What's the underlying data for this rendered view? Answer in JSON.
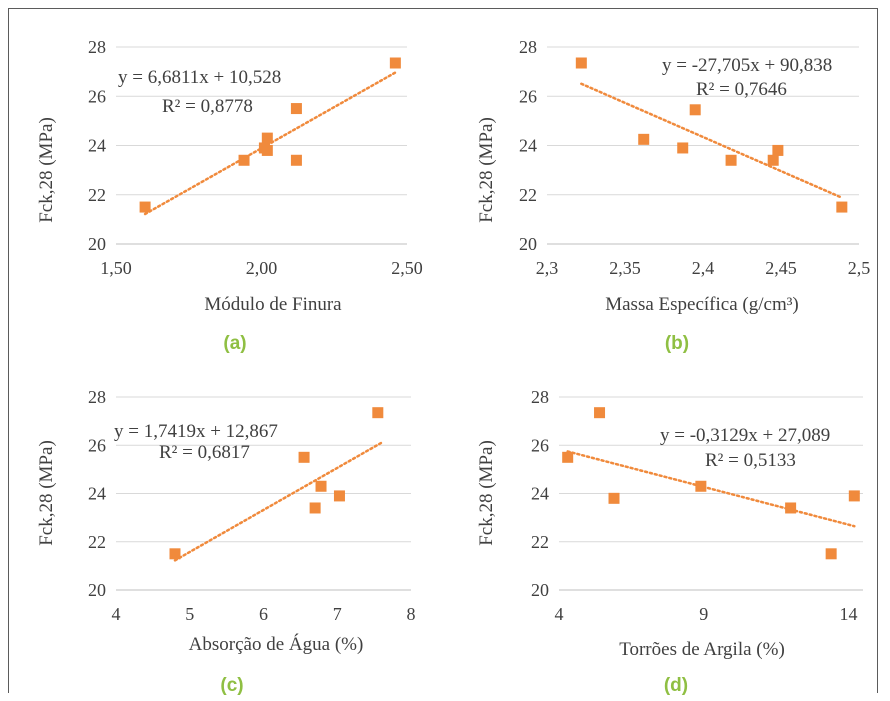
{
  "panels": [
    {
      "label": "(a)"
    },
    {
      "label": "(b)"
    },
    {
      "label": "(c)"
    },
    {
      "label": "(d)"
    }
  ],
  "colors": {
    "marker": "#f08a3c",
    "trendline": "#f08a3c",
    "grid": "#d9d9d9",
    "text": "#404040",
    "panel_label": "#8fbf43"
  },
  "chart_data": [
    {
      "type": "scatter",
      "title": "",
      "xlabel": "Módulo de Finura",
      "ylabel": "Fck,28 (MPa)",
      "xlim": [
        1.5,
        2.5
      ],
      "ylim": [
        20,
        28
      ],
      "xticks": [
        1.5,
        2.0,
        2.5
      ],
      "xtick_labels": [
        "1,50",
        "2,00",
        "2,50"
      ],
      "yticks": [
        20,
        22,
        24,
        26,
        28
      ],
      "ytick_labels": [
        "20",
        "22",
        "24",
        "26",
        "28"
      ],
      "grid": "horizontal",
      "x": [
        1.6,
        1.94,
        2.01,
        2.02,
        2.02,
        2.12,
        2.12,
        2.46
      ],
      "y": [
        21.5,
        23.4,
        23.9,
        23.8,
        24.3,
        25.5,
        23.4,
        27.35
      ],
      "trendline": {
        "slope": 6.6811,
        "intercept": 10.528,
        "x_range": [
          1.6,
          2.46
        ]
      },
      "equation": "y = 6,6811x + 10,528",
      "r2": "R² = 0,8778"
    },
    {
      "type": "scatter",
      "title": "",
      "xlabel": "Massa Específica (g/cm³)",
      "ylabel": "Fck,28 (MPa)",
      "xlim": [
        2.3,
        2.5
      ],
      "ylim": [
        20,
        28
      ],
      "xticks": [
        2.3,
        2.35,
        2.4,
        2.45,
        2.5
      ],
      "xtick_labels": [
        "2,3",
        "2,35",
        "2,4",
        "2,45",
        "2,5"
      ],
      "yticks": [
        20,
        22,
        24,
        26,
        28
      ],
      "ytick_labels": [
        "20",
        "22",
        "24",
        "26",
        "28"
      ],
      "grid": "horizontal",
      "x": [
        2.322,
        2.362,
        2.387,
        2.395,
        2.418,
        2.445,
        2.448,
        2.489
      ],
      "y": [
        27.35,
        24.25,
        23.9,
        25.45,
        23.4,
        23.4,
        23.8,
        21.5
      ],
      "trendline": {
        "slope": -27.705,
        "intercept": 90.838,
        "x_range": [
          2.322,
          2.489
        ]
      },
      "equation": "y = -27,705x + 90,838",
      "r2": "R² = 0,7646"
    },
    {
      "type": "scatter",
      "title": "",
      "xlabel": "Absorção de Água (%)",
      "ylabel": "Fck,28 (MPa)",
      "xlim": [
        4,
        8
      ],
      "ylim": [
        20,
        28
      ],
      "xticks": [
        4,
        5,
        6,
        7,
        8
      ],
      "xtick_labels": [
        "4",
        "5",
        "6",
        "7",
        "8"
      ],
      "yticks": [
        20,
        22,
        24,
        26,
        28
      ],
      "ytick_labels": [
        "20",
        "22",
        "24",
        "26",
        "28"
      ],
      "grid": "horizontal",
      "x": [
        4.8,
        6.55,
        6.7,
        6.78,
        7.03,
        7.55
      ],
      "y": [
        21.5,
        25.5,
        23.4,
        24.3,
        23.9,
        27.35
      ],
      "trendline": {
        "slope": 1.7419,
        "intercept": 12.867,
        "x_range": [
          4.8,
          7.6
        ]
      },
      "equation": "y = 1,7419x + 12,867",
      "r2": "R² = 0,6817"
    },
    {
      "type": "scatter",
      "title": "",
      "xlabel": "Torrões de Argila (%)",
      "ylabel": "Fck,28 (MPa)",
      "xlim": [
        4,
        14.5
      ],
      "ylim": [
        20,
        28
      ],
      "xticks": [
        4,
        9,
        14
      ],
      "xtick_labels": [
        "4",
        "9",
        "14"
      ],
      "yticks": [
        20,
        22,
        24,
        26,
        28
      ],
      "ytick_labels": [
        "20",
        "22",
        "24",
        "26",
        "28"
      ],
      "grid": "horizontal",
      "x": [
        4.3,
        5.4,
        5.9,
        8.9,
        12.0,
        13.4,
        14.2
      ],
      "y": [
        25.5,
        27.35,
        23.8,
        24.3,
        23.4,
        21.5,
        23.9
      ],
      "trendline": {
        "slope": -0.3129,
        "intercept": 27.089,
        "x_range": [
          4.3,
          14.2
        ]
      },
      "equation": "y = -0,3129x + 27,089",
      "r2": "R² = 0,5133"
    }
  ]
}
